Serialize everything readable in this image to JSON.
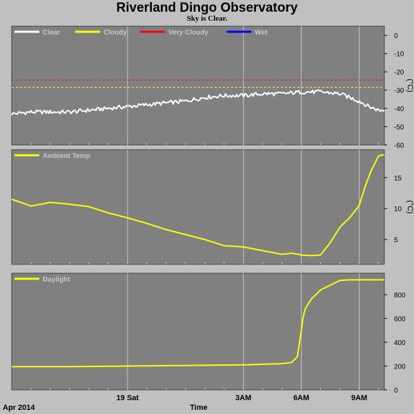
{
  "header": {
    "title": "Riverland Dingo Observatory",
    "subtitle": "Sky is Clear."
  },
  "colors": {
    "background": "#c0c0c0",
    "plot_bg": "#808080",
    "grid": "#c8c8c8",
    "clear": "#ffffff",
    "cloudy": "#ffff00",
    "very_cloudy": "#ff0000",
    "wet": "#0000ff",
    "series": "#ffff00"
  },
  "footer": {
    "date_label": "Apr 2014",
    "xlabel": "Time"
  },
  "chart_data": [
    {
      "type": "line",
      "name": "sky",
      "legend": [
        {
          "name": "Clear",
          "color": "#ffffff"
        },
        {
          "name": "Cloudy",
          "color": "#ffff00"
        },
        {
          "name": "Very Cloudy",
          "color": "#ff0000"
        },
        {
          "name": "Wet",
          "color": "#0000ff"
        }
      ],
      "ylabel": "(°C)",
      "ylim": [
        -60,
        5
      ],
      "yticks": [
        0,
        -10,
        -20,
        -30,
        -40,
        -50,
        -60
      ],
      "thresholds": [
        {
          "value": -24.5,
          "color": "#ff0000"
        },
        {
          "value": -28.5,
          "color": "#ffff00"
        }
      ],
      "xlim": [
        -9,
        10.3
      ],
      "series": [
        {
          "name": "Clear",
          "color": "#ffffff",
          "x": [
            -9,
            -8,
            -7,
            -6,
            -5,
            -4,
            -3,
            -2,
            -1,
            0,
            1,
            2,
            3,
            4,
            5,
            6,
            7,
            8,
            8.5,
            9,
            9.5,
            10,
            10.3
          ],
          "y": [
            -43,
            -42,
            -42,
            -42,
            -41,
            -40,
            -39,
            -38,
            -37,
            -36,
            -34,
            -33,
            -33,
            -32,
            -32,
            -31,
            -31,
            -32,
            -34,
            -36,
            -39,
            -41,
            -41
          ]
        }
      ]
    },
    {
      "type": "line",
      "name": "ambient",
      "legend": [
        {
          "name": "Ambient Temp",
          "color": "#ffff00"
        }
      ],
      "ylabel": "(°C)",
      "ylim": [
        1,
        19.5
      ],
      "yticks": [
        5,
        10,
        15
      ],
      "xlim": [
        -9,
        10.3
      ],
      "series": [
        {
          "name": "Ambient Temp",
          "color": "#ffff00",
          "x": [
            -9,
            -8,
            -7,
            -6,
            -5,
            -4,
            -3,
            -2,
            -1,
            0,
            1,
            2,
            3,
            4,
            5,
            5.5,
            6,
            6.5,
            7,
            7.5,
            8,
            8.5,
            9,
            9.3,
            9.6,
            10,
            10.3
          ],
          "y": [
            11.5,
            10.4,
            11.0,
            10.7,
            10.3,
            9.3,
            8.5,
            7.6,
            6.6,
            5.8,
            5.0,
            4.0,
            3.8,
            3.2,
            2.6,
            2.8,
            2.5,
            2.4,
            2.5,
            4.5,
            7.0,
            8.5,
            10.5,
            13.5,
            16.0,
            18.5,
            18.7
          ]
        }
      ]
    },
    {
      "type": "line",
      "name": "daylight",
      "legend": [
        {
          "name": "Daylight",
          "color": "#ffff00"
        }
      ],
      "ylabel": "",
      "ylim": [
        0,
        980
      ],
      "yticks": [
        0,
        200,
        400,
        600,
        800
      ],
      "xlim": [
        -9,
        10.3
      ],
      "series": [
        {
          "name": "Daylight",
          "color": "#ffff00",
          "x": [
            -9,
            -6,
            -3,
            0,
            3,
            4,
            5,
            5.5,
            5.8,
            6,
            6.1,
            6.2,
            6.5,
            7,
            7.5,
            8,
            8.5,
            9,
            9.5,
            10,
            10.3
          ],
          "y": [
            195,
            195,
            200,
            205,
            210,
            215,
            220,
            230,
            280,
            500,
            620,
            680,
            760,
            840,
            880,
            920,
            925,
            925,
            925,
            925,
            925
          ]
        }
      ]
    }
  ],
  "x_axis": {
    "tick_labels": [
      {
        "x": -3,
        "label": "19 Sat"
      },
      {
        "x": 3,
        "label": "3AM"
      },
      {
        "x": 6,
        "label": "6AM"
      },
      {
        "x": 9,
        "label": "9AM"
      }
    ],
    "grid_x": [
      -3,
      3,
      6,
      9
    ]
  }
}
